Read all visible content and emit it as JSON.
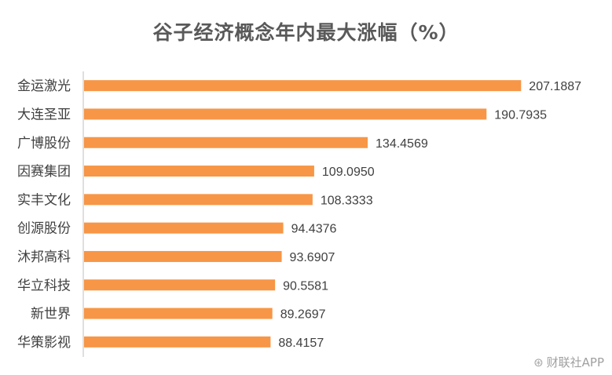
{
  "chart_data": {
    "type": "bar",
    "orientation": "horizontal",
    "title": "谷子经济概念年内最大涨幅（%）",
    "categories": [
      "金运激光",
      "大连圣亚",
      "广博股份",
      "因赛集团",
      "实丰文化",
      "创源股份",
      "沐邦高科",
      "华立科技",
      "新世界",
      "华策影视"
    ],
    "values": [
      207.1887,
      190.7935,
      134.4569,
      109.095,
      108.3333,
      94.4376,
      93.6907,
      90.5581,
      89.2697,
      88.4157
    ],
    "value_labels": [
      "207.1887",
      "190.7935",
      "134.4569",
      "109.0950",
      "108.3333",
      "94.4376",
      "93.6907",
      "90.5581",
      "89.2697",
      "88.4157"
    ],
    "xlim": [
      0,
      220
    ],
    "bar_color": "#F79646",
    "grid": false,
    "legend": "none"
  },
  "watermark": {
    "icon": "weibo-icon",
    "text": "财联社APP"
  }
}
